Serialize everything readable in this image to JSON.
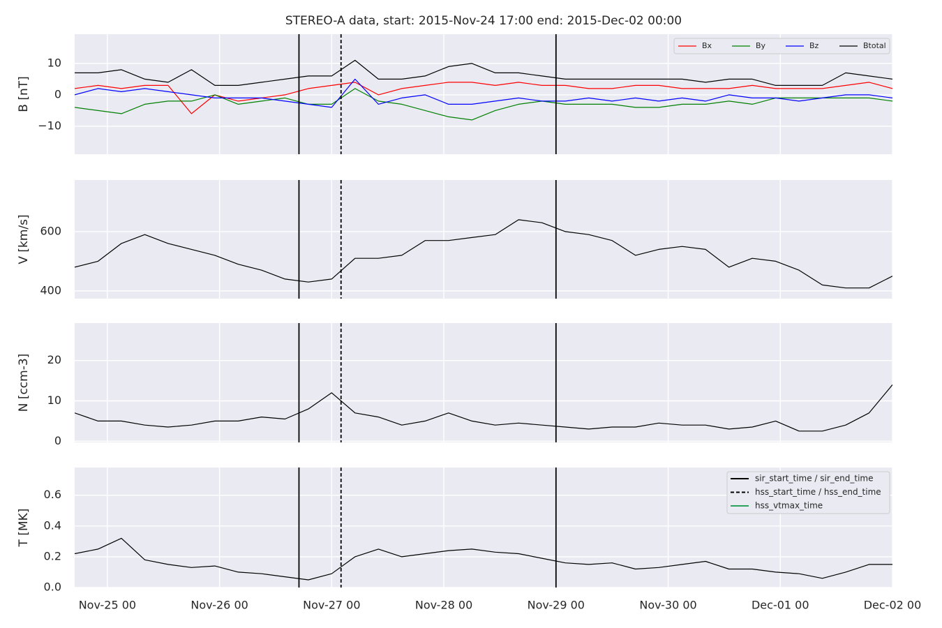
{
  "chart_data": [
    {
      "type": "line",
      "title": "STEREO-A data, start: 2015-Nov-24 17:00  end: 2015-Dec-02 00:00",
      "ylabel": "B [nT]",
      "x": [
        "Nov-24 17",
        "Nov-24 22",
        "Nov-25 03",
        "Nov-25 08",
        "Nov-25 13",
        "Nov-25 18",
        "Nov-25 23",
        "Nov-26 04",
        "Nov-26 09",
        "Nov-26 14",
        "Nov-26 19",
        "Nov-27 00",
        "Nov-27 05",
        "Nov-27 10",
        "Nov-27 15",
        "Nov-27 20",
        "Nov-28 01",
        "Nov-28 06",
        "Nov-28 11",
        "Nov-28 16",
        "Nov-28 21",
        "Nov-29 02",
        "Nov-29 07",
        "Nov-29 12",
        "Nov-29 17",
        "Nov-29 22",
        "Nov-30 03",
        "Nov-30 08",
        "Nov-30 13",
        "Nov-30 18",
        "Nov-30 23",
        "Dec-01 04",
        "Dec-01 09",
        "Dec-01 14",
        "Dec-01 19",
        "Dec-02 00"
      ],
      "series": [
        {
          "name": "Bx",
          "color": "#ff0000",
          "values": [
            2,
            3,
            2,
            3,
            3,
            -6,
            0,
            -2,
            -1,
            0,
            2,
            3,
            4,
            0,
            2,
            3,
            4,
            4,
            3,
            4,
            3,
            3,
            2,
            2,
            3,
            3,
            2,
            2,
            2,
            3,
            2,
            2,
            2,
            3,
            4,
            2
          ]
        },
        {
          "name": "By",
          "color": "#008000",
          "values": [
            -4,
            -5,
            -6,
            -3,
            -2,
            -2,
            0,
            -3,
            -2,
            -1,
            -3,
            -3,
            2,
            -2,
            -3,
            -5,
            -7,
            -8,
            -5,
            -3,
            -2,
            -3,
            -3,
            -3,
            -4,
            -4,
            -3,
            -3,
            -2,
            -3,
            -1,
            -1,
            -1,
            -1,
            -1,
            -2
          ]
        },
        {
          "name": "Bz",
          "color": "#0000ff",
          "values": [
            0,
            2,
            1,
            2,
            1,
            0,
            -1,
            -1,
            -1,
            -2,
            -3,
            -4,
            5,
            -3,
            -1,
            0,
            -3,
            -3,
            -2,
            -1,
            -2,
            -2,
            -1,
            -2,
            -1,
            -2,
            -1,
            -2,
            0,
            -1,
            -1,
            -2,
            -1,
            0,
            0,
            -1
          ]
        },
        {
          "name": "Btotal",
          "color": "#000000",
          "values": [
            7,
            7,
            8,
            5,
            4,
            8,
            3,
            3,
            4,
            5,
            6,
            6,
            11,
            5,
            5,
            6,
            9,
            10,
            7,
            7,
            6,
            5,
            5,
            5,
            5,
            5,
            5,
            4,
            5,
            5,
            3,
            3,
            3,
            7,
            6,
            5
          ]
        }
      ],
      "xlim": [
        "Nov-24 17",
        "Dec-02 00"
      ],
      "xticks": [
        "Nov-25 00",
        "Nov-26 00",
        "Nov-27 00",
        "Nov-28 00",
        "Nov-29 00",
        "Nov-30 00",
        "Dec-01 00",
        "Dec-02 00"
      ],
      "ylim": [
        -18.9,
        19.3
      ],
      "yticks": [
        {
          "value": -10,
          "label": "−10"
        },
        0,
        10
      ],
      "grid": true,
      "legend": "upper right",
      "events": [
        {
          "color": "#000000",
          "style": "solid",
          "times": [
            "Nov-26 17",
            "Nov-29 00"
          ]
        },
        {
          "color": "#000000",
          "style": "dashed",
          "times": [
            "Nov-27 02"
          ]
        }
      ]
    },
    {
      "type": "line",
      "ylabel": "V [km/s]",
      "x": [
        "Nov-24 17",
        "Nov-24 22",
        "Nov-25 03",
        "Nov-25 08",
        "Nov-25 13",
        "Nov-25 18",
        "Nov-25 23",
        "Nov-26 04",
        "Nov-26 09",
        "Nov-26 14",
        "Nov-26 19",
        "Nov-27 00",
        "Nov-27 05",
        "Nov-27 10",
        "Nov-27 15",
        "Nov-27 20",
        "Nov-28 01",
        "Nov-28 06",
        "Nov-28 11",
        "Nov-28 16",
        "Nov-28 21",
        "Nov-29 02",
        "Nov-29 07",
        "Nov-29 12",
        "Nov-29 17",
        "Nov-29 22",
        "Nov-30 03",
        "Nov-30 08",
        "Nov-30 13",
        "Nov-30 18",
        "Nov-30 23",
        "Dec-01 04",
        "Dec-01 09",
        "Dec-01 14",
        "Dec-01 19",
        "Dec-02 00"
      ],
      "series": [
        {
          "color": "#000000",
          "values": [
            480,
            500,
            560,
            590,
            560,
            540,
            520,
            490,
            470,
            440,
            430,
            440,
            510,
            510,
            520,
            570,
            570,
            580,
            590,
            640,
            630,
            600,
            590,
            570,
            520,
            540,
            550,
            540,
            480,
            510,
            500,
            470,
            420,
            410,
            410,
            450
          ]
        }
      ],
      "xlim": [
        "Nov-24 17",
        "Dec-02 00"
      ],
      "xticks": [
        "Nov-25 00",
        "Nov-26 00",
        "Nov-27 00",
        "Nov-28 00",
        "Nov-29 00",
        "Nov-30 00",
        "Dec-01 00",
        "Dec-02 00"
      ],
      "ylim": [
        374,
        774
      ],
      "yticks": [
        400,
        600
      ],
      "grid": true,
      "events": [
        {
          "color": "#000000",
          "style": "solid",
          "times": [
            "Nov-26 17",
            "Nov-29 00"
          ]
        },
        {
          "color": "#000000",
          "style": "dashed",
          "times": [
            "Nov-27 02"
          ]
        }
      ]
    },
    {
      "type": "line",
      "ylabel": "N [ccm-3]",
      "x": [
        "Nov-24 17",
        "Nov-24 22",
        "Nov-25 03",
        "Nov-25 08",
        "Nov-25 13",
        "Nov-25 18",
        "Nov-25 23",
        "Nov-26 04",
        "Nov-26 09",
        "Nov-26 14",
        "Nov-26 19",
        "Nov-27 00",
        "Nov-27 05",
        "Nov-27 10",
        "Nov-27 15",
        "Nov-27 20",
        "Nov-28 01",
        "Nov-28 06",
        "Nov-28 11",
        "Nov-28 16",
        "Nov-28 21",
        "Nov-29 02",
        "Nov-29 07",
        "Nov-29 12",
        "Nov-29 17",
        "Nov-29 22",
        "Nov-30 03",
        "Nov-30 08",
        "Nov-30 13",
        "Nov-30 18",
        "Nov-30 23",
        "Dec-01 04",
        "Dec-01 09",
        "Dec-01 14",
        "Dec-01 19",
        "Dec-02 00"
      ],
      "series": [
        {
          "color": "#000000",
          "values": [
            7,
            5,
            5,
            4,
            3.5,
            4,
            5,
            5,
            6,
            5.5,
            8,
            12,
            7,
            6,
            4,
            5,
            7,
            5,
            4,
            4.5,
            4,
            3.5,
            3,
            3.5,
            3.5,
            4.5,
            4,
            4,
            3,
            3.5,
            5,
            2.5,
            2.5,
            4,
            7,
            14
          ]
        }
      ],
      "xlim": [
        "Nov-24 17",
        "Dec-02 00"
      ],
      "xticks": [
        "Nov-25 00",
        "Nov-26 00",
        "Nov-27 00",
        "Nov-28 00",
        "Nov-29 00",
        "Nov-30 00",
        "Dec-01 00",
        "Dec-02 00"
      ],
      "ylim": [
        -0.3,
        29.3
      ],
      "yticks": [
        0,
        10,
        20
      ],
      "grid": true,
      "events": [
        {
          "color": "#000000",
          "style": "solid",
          "times": [
            "Nov-26 17",
            "Nov-29 00"
          ]
        },
        {
          "color": "#000000",
          "style": "dashed",
          "times": [
            "Nov-27 02"
          ]
        }
      ]
    },
    {
      "type": "line",
      "ylabel": "T [MK]",
      "x": [
        "Nov-24 17",
        "Nov-24 22",
        "Nov-25 03",
        "Nov-25 08",
        "Nov-25 13",
        "Nov-25 18",
        "Nov-25 23",
        "Nov-26 04",
        "Nov-26 09",
        "Nov-26 14",
        "Nov-26 19",
        "Nov-27 00",
        "Nov-27 05",
        "Nov-27 10",
        "Nov-27 15",
        "Nov-27 20",
        "Nov-28 01",
        "Nov-28 06",
        "Nov-28 11",
        "Nov-28 16",
        "Nov-28 21",
        "Nov-29 02",
        "Nov-29 07",
        "Nov-29 12",
        "Nov-29 17",
        "Nov-29 22",
        "Nov-30 03",
        "Nov-30 08",
        "Nov-30 13",
        "Nov-30 18",
        "Nov-30 23",
        "Dec-01 04",
        "Dec-01 09",
        "Dec-01 14",
        "Dec-01 19",
        "Dec-02 00"
      ],
      "series": [
        {
          "color": "#000000",
          "values": [
            0.22,
            0.25,
            0.32,
            0.18,
            0.15,
            0.13,
            0.14,
            0.1,
            0.09,
            0.07,
            0.05,
            0.09,
            0.2,
            0.25,
            0.2,
            0.22,
            0.24,
            0.25,
            0.23,
            0.22,
            0.19,
            0.16,
            0.15,
            0.16,
            0.12,
            0.13,
            0.15,
            0.17,
            0.12,
            0.12,
            0.1,
            0.09,
            0.06,
            0.1,
            0.15,
            0.15
          ]
        }
      ],
      "xlim": [
        "Nov-24 17",
        "Dec-02 00"
      ],
      "xticks": [
        "Nov-25 00",
        "Nov-26 00",
        "Nov-27 00",
        "Nov-28 00",
        "Nov-29 00",
        "Nov-30 00",
        "Dec-01 00",
        "Dec-02 00"
      ],
      "ylim": [
        0,
        0.78
      ],
      "yticks": [
        {
          "value": 0,
          "label": "0.0"
        },
        0.2,
        0.4,
        0.6
      ],
      "grid": true,
      "legend": "upper right",
      "events": [
        {
          "name": "sir_start_time / sir_end_time",
          "color": "#000000",
          "style": "solid",
          "times": [
            "Nov-26 17",
            "Nov-29 00"
          ]
        },
        {
          "name": "hss_start_time / hss_end_time",
          "color": "#000000",
          "style": "dashed",
          "times": [
            "Nov-27 02"
          ]
        },
        {
          "name": "hss_vtmax_time",
          "color": "#2ca25f",
          "style": "solid",
          "times": []
        }
      ]
    }
  ]
}
